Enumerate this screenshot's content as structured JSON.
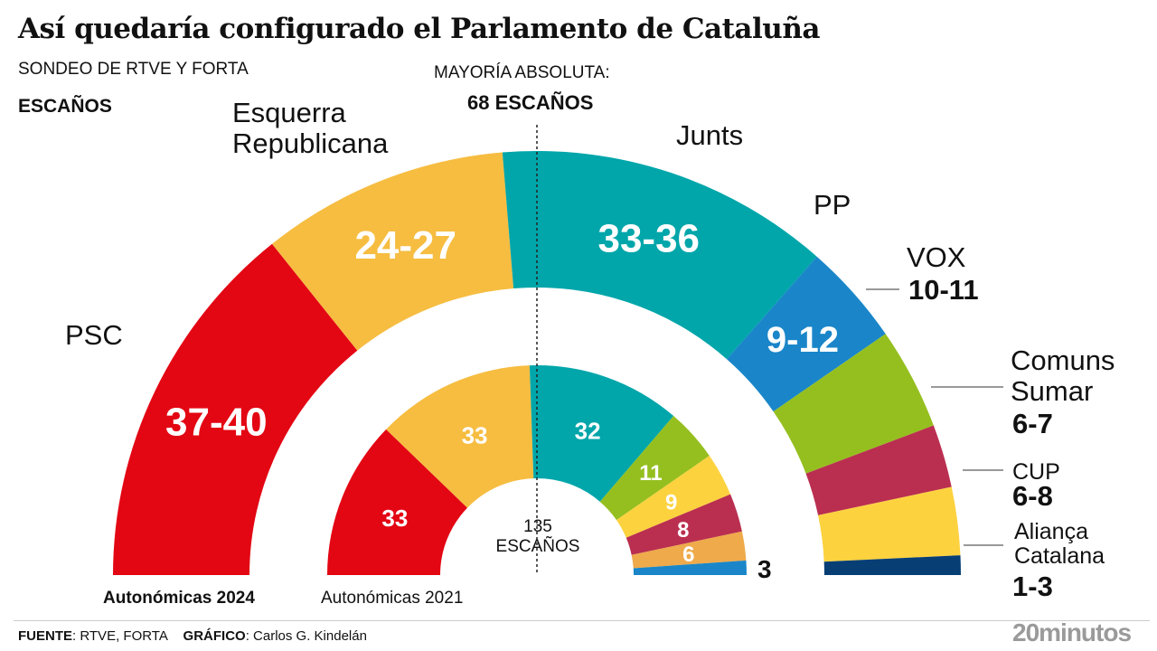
{
  "chart_data": {
    "type": "parliament",
    "title": "Así quedaría configurado el Parlamento de Cataluña",
    "subtitle": "SONDEO DE RTVE Y FORTA",
    "unit_label": "ESCAÑOS",
    "majority": {
      "label": "MAYORÍA ABSOLUTA:",
      "value_label": "68 ESCAÑOS",
      "seats": 68
    },
    "total_label": "135",
    "total_unit": "ESCAÑOS",
    "total": 135,
    "outer": {
      "name": "Autonómicas 2024",
      "parties": [
        {
          "name": "PSC",
          "range": "37-40",
          "seats": 38.5,
          "color": "#e30613"
        },
        {
          "name": "Esquerra Republicana",
          "range": "24-27",
          "seats": 25.5,
          "color": "#f6bd41"
        },
        {
          "name": "Junts",
          "range": "33-36",
          "seats": 34.5,
          "color": "#00a6aa"
        },
        {
          "name": "PP",
          "range": "9-12",
          "seats": 10.5,
          "color": "#1a86c9"
        },
        {
          "name": "VOX",
          "range": "10-11",
          "seats": 10.5,
          "color": "#95bf1f"
        },
        {
          "name": "Comuns Sumar",
          "range": "6-7",
          "seats": 6.5,
          "color": "#ba2f50"
        },
        {
          "name": "CUP",
          "range": "6-8",
          "seats": 7,
          "color": "#fcd23f"
        },
        {
          "name": "Aliança Catalana",
          "range": "1-3",
          "seats": 2,
          "color": "#073f75"
        }
      ]
    },
    "inner": {
      "name": "Autonómicas 2021",
      "parties": [
        {
          "seats": 33,
          "label": "33",
          "color": "#e30613"
        },
        {
          "seats": 33,
          "label": "33",
          "color": "#f6bd41"
        },
        {
          "seats": 32,
          "label": "32",
          "color": "#00a6aa"
        },
        {
          "seats": 11,
          "label": "11",
          "color": "#95bf1f"
        },
        {
          "seats": 9,
          "label": "9",
          "color": "#fcd23f"
        },
        {
          "seats": 8,
          "label": "8",
          "color": "#ba2f50"
        },
        {
          "seats": 6,
          "label": "6",
          "color": "#eeaa4b"
        },
        {
          "seats": 3,
          "label": "3",
          "color": "#1a86c9"
        }
      ]
    }
  },
  "footer": {
    "source_key": "FUENTE",
    "source": ": RTVE, FORTA",
    "credit_key": "GRÁFICO",
    "credit": ": Carlos G. Kindelán",
    "logo": "20minutos"
  }
}
